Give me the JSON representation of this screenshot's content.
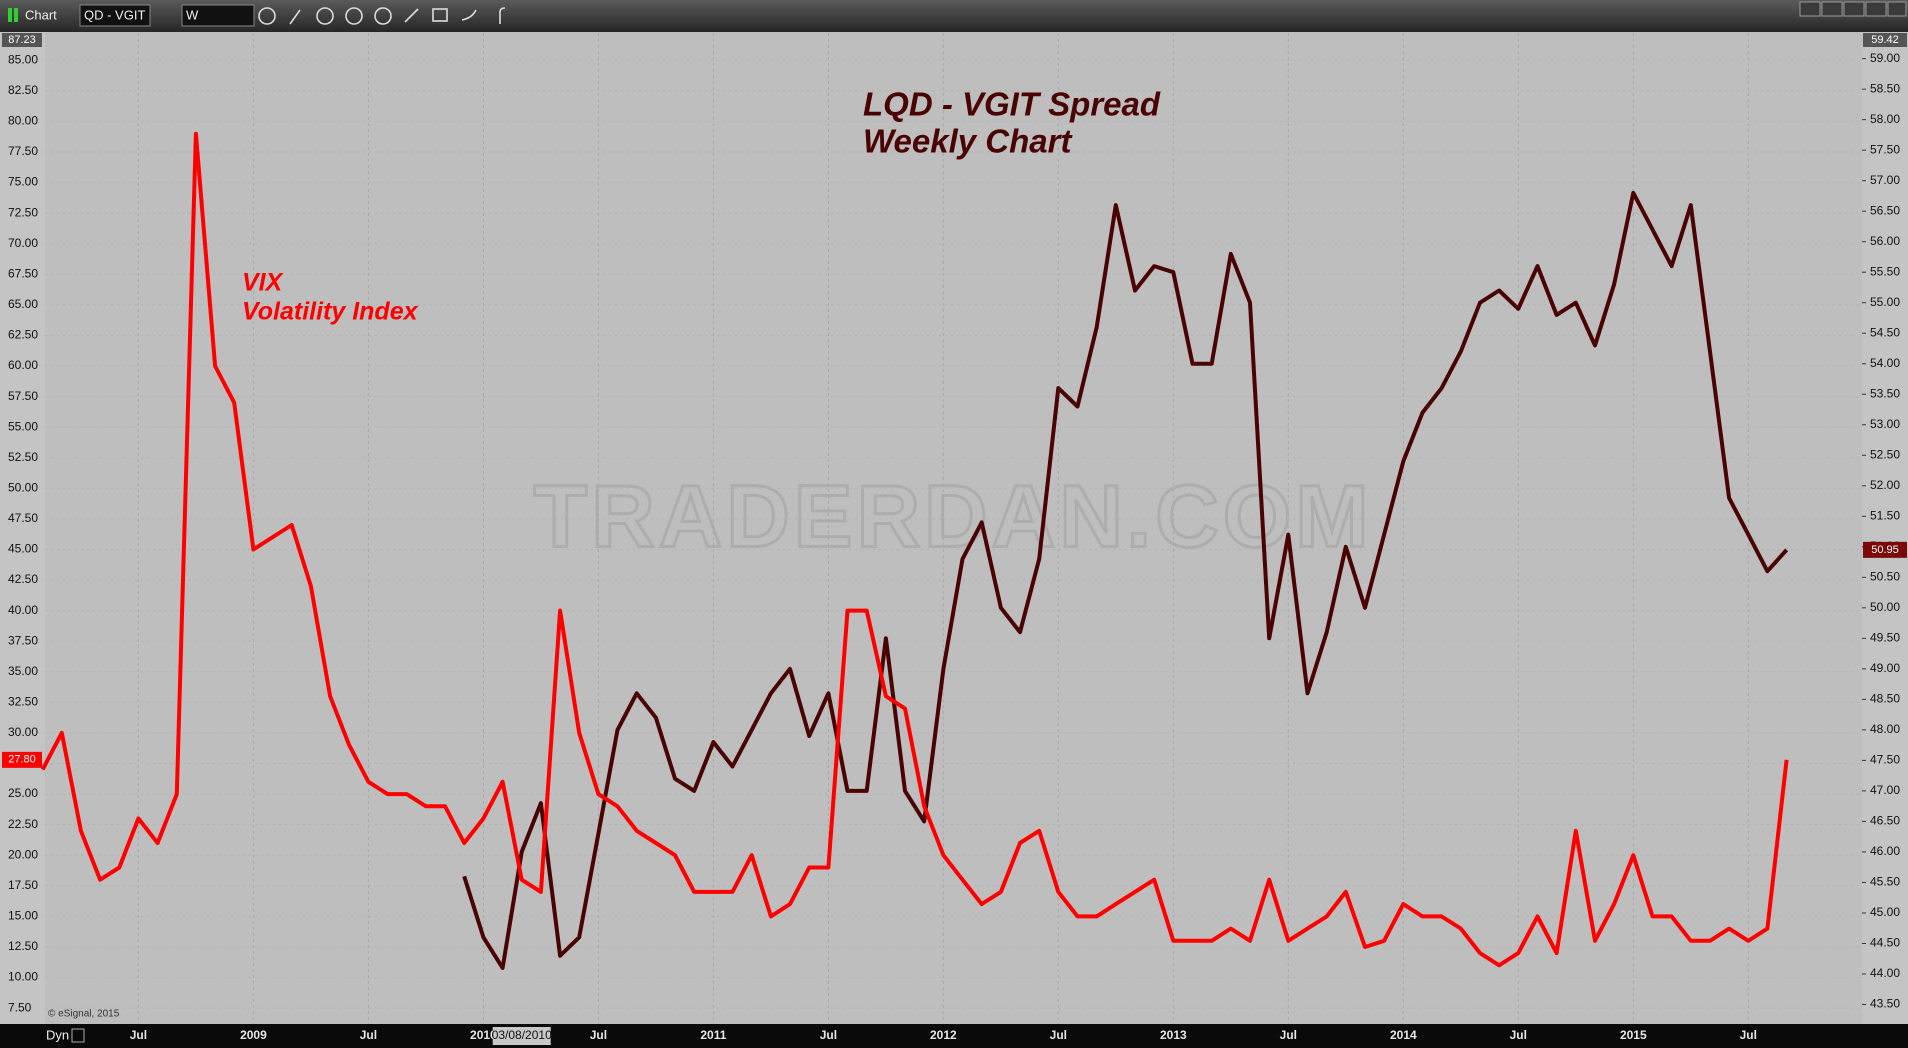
{
  "toolbar": {
    "app": "Chart",
    "symbol": "QD - VGIT",
    "interval": "W"
  },
  "status_bar": {
    "mode": "Dyn"
  },
  "chart_data": {
    "type": "line",
    "title": "LQD - VGIT Spread",
    "subtitle": "Weekly Chart",
    "annotations": [
      "Volatility Index"
    ],
    "watermark": "TRADERDAN.COM",
    "copyright": "© eSignal, 2015",
    "cursor_label": "03/08/2010",
    "categories": [
      null,
      null,
      null,
      null,
      null,
      "Jul",
      null,
      null,
      null,
      null,
      null,
      "2009",
      null,
      null,
      null,
      null,
      null,
      "Jul",
      null,
      null,
      null,
      null,
      null,
      "2010",
      null,
      null,
      null,
      null,
      null,
      "Jul",
      null,
      null,
      null,
      null,
      null,
      "2011",
      null,
      null,
      null,
      null,
      null,
      "Jul",
      null,
      null,
      null,
      null,
      null,
      "2012",
      null,
      null,
      null,
      null,
      null,
      "Jul",
      null,
      null,
      null,
      null,
      null,
      "2013",
      null,
      null,
      null,
      null,
      null,
      "Jul",
      null,
      null,
      null,
      null,
      null,
      "2014",
      null,
      null,
      null,
      null,
      null,
      "Jul",
      null,
      null,
      null,
      null,
      null,
      "2015",
      null,
      null,
      null,
      null,
      null,
      "Jul",
      null,
      null,
      null,
      null,
      null
    ],
    "series": [
      {
        "name": "VIX",
        "color": "#ff0000",
        "last_label": "27.80",
        "values": [
          27,
          30,
          22,
          18,
          19,
          23,
          21,
          25,
          79,
          60,
          57,
          45,
          46,
          47,
          42,
          33,
          29,
          26,
          25,
          25,
          24,
          24,
          21,
          23,
          26,
          18,
          17,
          40,
          30,
          25,
          24,
          22,
          21,
          20,
          17,
          17,
          17,
          20,
          15,
          16,
          19,
          19,
          40,
          40,
          33,
          32,
          24,
          20,
          18,
          16,
          17,
          21,
          22,
          17,
          15,
          15,
          16,
          17,
          18,
          13,
          13,
          13,
          14,
          13,
          18,
          13,
          14,
          15,
          17,
          12.5,
          13,
          16,
          15,
          15,
          14,
          12,
          11,
          12,
          15,
          12,
          22,
          13,
          16,
          20,
          15,
          15,
          13,
          13,
          14,
          13,
          14,
          27.8,
          null,
          null,
          null
        ]
      },
      {
        "color": "#4a0303",
        "axis": "y2",
        "values": [
          null,
          null,
          null,
          null,
          null,
          null,
          null,
          null,
          null,
          null,
          null,
          null,
          null,
          null,
          null,
          null,
          null,
          null,
          null,
          null,
          null,
          null,
          45.6,
          44.6,
          44.1,
          46.0,
          46.8,
          44.3,
          44.6,
          46.3,
          48.0,
          48.6,
          48.2,
          47.2,
          47.0,
          47.8,
          47.4,
          48.0,
          48.6,
          49.0,
          47.9,
          48.6,
          47.0,
          47.0,
          49.5,
          47.0,
          46.5,
          49.0,
          50.8,
          51.4,
          50.0,
          49.6,
          50.8,
          53.6,
          53.3,
          54.6,
          56.6,
          55.2,
          55.6,
          55.5,
          54.0,
          54.0,
          55.8,
          55.0,
          49.5,
          51.2,
          48.6,
          49.6,
          51.0,
          50.0,
          51.2,
          52.4,
          53.2,
          53.6,
          54.2,
          55.0,
          55.2,
          54.9,
          55.6,
          54.8,
          55.0,
          54.3,
          55.3,
          56.8,
          56.2,
          55.6,
          56.6,
          54.2,
          51.8,
          51.2,
          50.6,
          50.95,
          null,
          null,
          null
        ]
      }
    ],
    "ylim": [
      6.2,
      87.23
    ],
    "yticks": [
      {
        "value": 7.5,
        "label": "7.50"
      },
      {
        "value": 10,
        "label": "10.00"
      },
      {
        "value": 12.5,
        "label": "12.50"
      },
      {
        "value": 15,
        "label": "15.00"
      },
      {
        "value": 17.5,
        "label": "17.50"
      },
      {
        "value": 20,
        "label": "20.00"
      },
      {
        "value": 22.5,
        "label": "22.50"
      },
      {
        "value": 25,
        "label": "25.00"
      },
      {
        "value": 27.5,
        "label": "27.50"
      },
      {
        "value": 30,
        "label": "30.00"
      },
      {
        "value": 32.5,
        "label": "32.50"
      },
      {
        "value": 35,
        "label": "35.00"
      },
      {
        "value": 37.5,
        "label": "37.50"
      },
      {
        "value": 40,
        "label": "40.00"
      },
      {
        "value": 42.5,
        "label": "42.50"
      },
      {
        "value": 45,
        "label": "45.00"
      },
      {
        "value": 47.5,
        "label": "47.50"
      },
      {
        "value": 50,
        "label": "50.00"
      },
      {
        "value": 52.5,
        "label": "52.50"
      },
      {
        "value": 55,
        "label": "55.00"
      },
      {
        "value": 57.5,
        "label": "57.50"
      },
      {
        "value": 60,
        "label": "60.00"
      },
      {
        "value": 62.5,
        "label": "62.50"
      },
      {
        "value": 65,
        "label": "65.00"
      },
      {
        "value": 67.5,
        "label": "67.50"
      },
      {
        "value": 70,
        "label": "70.00"
      },
      {
        "value": 72.5,
        "label": "72.50"
      },
      {
        "value": 75,
        "label": "75.00"
      },
      {
        "value": 77.5,
        "label": "77.50"
      },
      {
        "value": 80,
        "label": "80.00"
      },
      {
        "value": 82.5,
        "label": "82.50"
      },
      {
        "value": 85,
        "label": "85.00"
      }
    ],
    "y2lim": [
      43.18,
      59.42
    ],
    "y2ticks": [
      {
        "value": 43.5,
        "label": "43.50"
      },
      {
        "value": 44,
        "label": "44.00"
      },
      {
        "value": 44.5,
        "label": "44.50"
      },
      {
        "value": 45,
        "label": "45.00"
      },
      {
        "value": 45.5,
        "label": "45.50"
      },
      {
        "value": 46,
        "label": "46.00"
      },
      {
        "value": 46.5,
        "label": "46.50"
      },
      {
        "value": 47,
        "label": "47.00"
      },
      {
        "value": 47.5,
        "label": "47.50"
      },
      {
        "value": 48,
        "label": "48.00"
      },
      {
        "value": 48.5,
        "label": "48.50"
      },
      {
        "value": 49,
        "label": "49.00"
      },
      {
        "value": 49.5,
        "label": "49.50"
      },
      {
        "value": 50,
        "label": "50.00"
      },
      {
        "value": 50.5,
        "label": "50.50"
      },
      {
        "value": 51,
        "label": "51.00"
      },
      {
        "value": 51.5,
        "label": "51.50"
      },
      {
        "value": 52,
        "label": "52.00"
      },
      {
        "value": 52.5,
        "label": "52.50"
      },
      {
        "value": 53,
        "label": "53.00"
      },
      {
        "value": 53.5,
        "label": "53.50"
      },
      {
        "value": 54,
        "label": "54.00"
      },
      {
        "value": 54.5,
        "label": "54.50"
      },
      {
        "value": 55,
        "label": "55.00"
      },
      {
        "value": 55.5,
        "label": "55.50"
      },
      {
        "value": 56,
        "label": "56.00"
      },
      {
        "value": 56.5,
        "label": "56.50"
      },
      {
        "value": 57,
        "label": "57.00"
      },
      {
        "value": 57.5,
        "label": "57.50"
      },
      {
        "value": 58,
        "label": "58.00"
      },
      {
        "value": 58.5,
        "label": "58.50"
      },
      {
        "value": 59,
        "label": "59.00"
      }
    ],
    "grid": true
  }
}
